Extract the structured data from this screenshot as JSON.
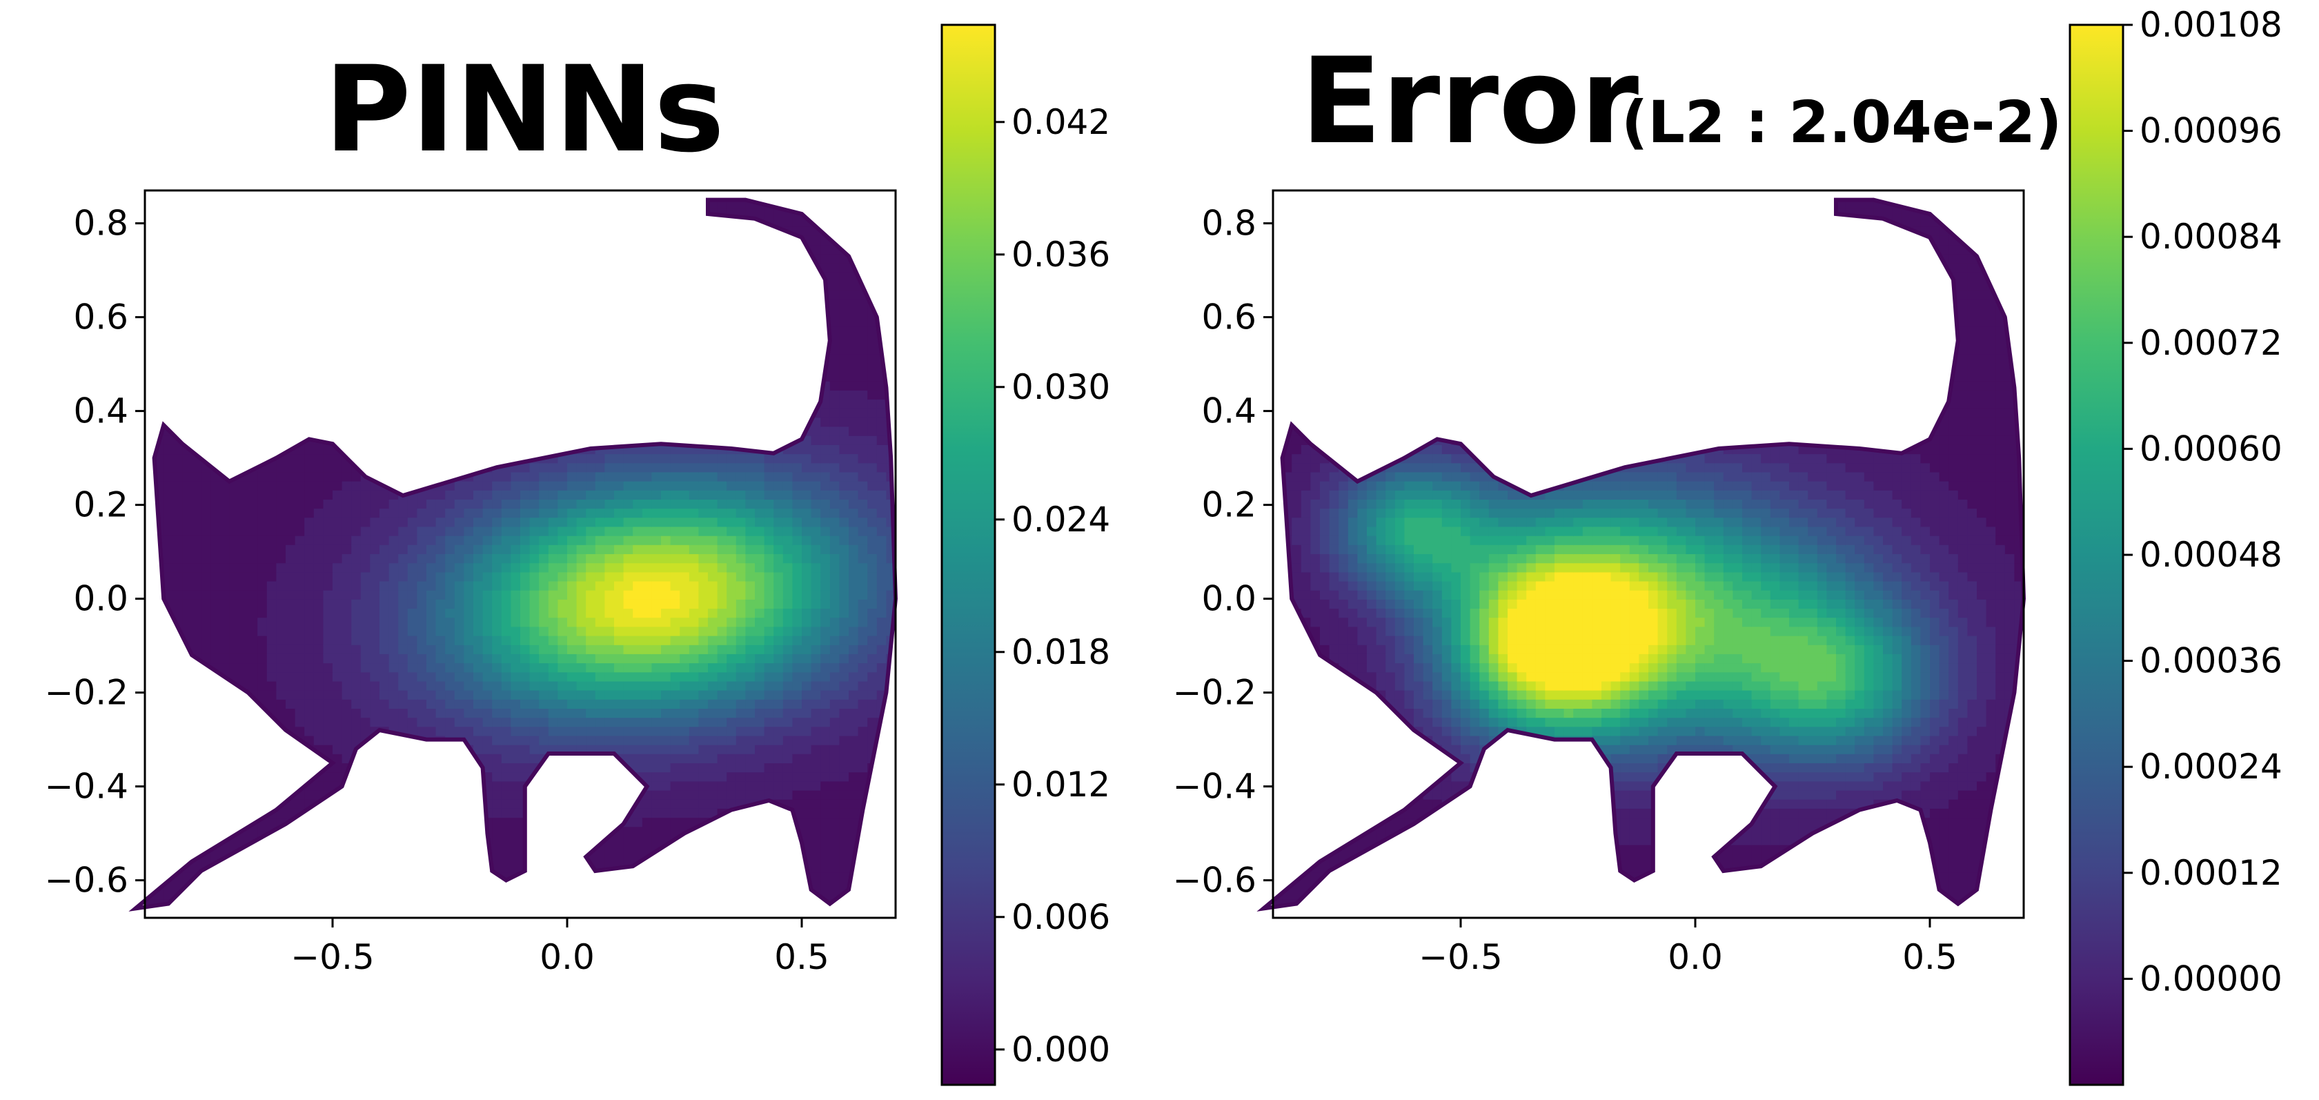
{
  "chart_data": [
    {
      "type": "heatmap",
      "title": "PINNs",
      "subtitle": "",
      "xlabel": "",
      "ylabel": "",
      "xlim": [
        -0.9,
        0.7
      ],
      "ylim": [
        -0.68,
        0.87
      ],
      "x_ticks": [
        -0.5,
        0.0,
        0.5
      ],
      "x_tick_labels": [
        "−0.5",
        "0.0",
        "0.5"
      ],
      "y_ticks": [
        0.8,
        0.6,
        0.4,
        0.2,
        0.0,
        -0.2,
        -0.4,
        -0.6
      ],
      "y_tick_labels": [
        "0.8",
        "0.6",
        "0.4",
        "0.2",
        "0.0",
        "−0.2",
        "−0.4",
        "−0.6"
      ],
      "colormap": "viridis",
      "colorbar_range": [
        -0.0016,
        0.0464
      ],
      "colorbar_ticks": [
        0.0,
        0.006,
        0.012,
        0.018,
        0.024,
        0.03,
        0.036,
        0.042
      ],
      "colorbar_tick_labels": [
        "0.000",
        "0.006",
        "0.012",
        "0.018",
        "0.024",
        "0.030",
        "0.036",
        "0.042"
      ],
      "grid": false,
      "domain_shape": "cat silhouette",
      "peak": {
        "x": 0.2,
        "y": 0.0,
        "value": 0.046
      }
    },
    {
      "type": "heatmap",
      "title": "Error",
      "subtitle": "(L2 : 2.04e-2)",
      "xlabel": "",
      "ylabel": "",
      "xlim": [
        -0.9,
        0.7
      ],
      "ylim": [
        -0.68,
        0.87
      ],
      "x_ticks": [
        -0.5,
        0.0,
        0.5
      ],
      "x_tick_labels": [
        "−0.5",
        "0.0",
        "0.5"
      ],
      "y_ticks": [
        0.8,
        0.6,
        0.4,
        0.2,
        0.0,
        -0.2,
        -0.4,
        -0.6
      ],
      "y_tick_labels": [
        "0.8",
        "0.6",
        "0.4",
        "0.2",
        "0.0",
        "−0.2",
        "−0.4",
        "−0.6"
      ],
      "colormap": "viridis",
      "colorbar_range": [
        -0.00012,
        0.00108
      ],
      "colorbar_ticks": [
        0.0,
        0.00012,
        0.00024,
        0.00036,
        0.00048,
        0.0006,
        0.00072,
        0.00084,
        0.00096,
        0.00108
      ],
      "colorbar_tick_labels": [
        "0.00000",
        "0.00012",
        "0.00024",
        "0.00036",
        "0.00048",
        "0.00060",
        "0.00072",
        "0.00084",
        "0.00096",
        "0.00108"
      ],
      "grid": false,
      "domain_shape": "cat silhouette",
      "peak": {
        "x": -0.3,
        "y": -0.1,
        "value": 0.00105
      }
    }
  ],
  "colors": {
    "viridis_dark": "#440154",
    "viridis_mid": "#21918c",
    "viridis_bright": "#fde725",
    "axis": "#000000",
    "background": "#ffffff"
  }
}
